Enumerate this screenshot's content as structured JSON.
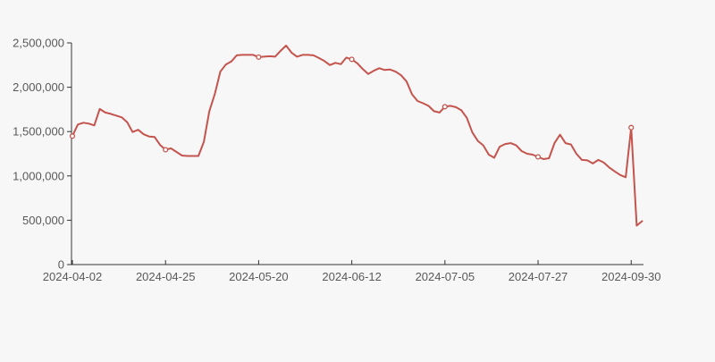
{
  "colors": {
    "background": "#f7f7f7",
    "line": "#c4544d",
    "marker_fill": "#ffffff",
    "axis": "#333333",
    "label": "#595959"
  },
  "chart_data": {
    "type": "line",
    "title": "",
    "xlabel": "",
    "ylabel": "",
    "grid": false,
    "legend": false,
    "x_axis": {
      "kind": "category-trading-days",
      "tick_labels": [
        "2024-04-02",
        "2024-04-25",
        "2024-05-20",
        "2024-06-12",
        "2024-07-05",
        "2024-07-27",
        "2024-09-30"
      ],
      "tick_indices": [
        0,
        17,
        34,
        51,
        68,
        85,
        102
      ],
      "point_count": 105
    },
    "y_axis": {
      "tick_labels": [
        "0",
        "500,000",
        "1,000,000",
        "1,500,000",
        "2,000,000",
        "2,500,000"
      ],
      "tick_values": [
        0,
        500000,
        1000000,
        1500000,
        2000000,
        2500000
      ],
      "range": [
        0,
        2500000
      ]
    },
    "series": [
      {
        "name": "value",
        "color": "#c4544d",
        "marker": "open-circle",
        "marker_indices": [
          0,
          17,
          34,
          51,
          68,
          85,
          102
        ],
        "values": [
          1450000,
          1580000,
          1600000,
          1590000,
          1570000,
          1755000,
          1715000,
          1700000,
          1680000,
          1660000,
          1605000,
          1495000,
          1520000,
          1470000,
          1445000,
          1440000,
          1350000,
          1295000,
          1310000,
          1270000,
          1230000,
          1225000,
          1225000,
          1225000,
          1385000,
          1730000,
          1925000,
          2175000,
          2255000,
          2290000,
          2360000,
          2365000,
          2365000,
          2365000,
          2340000,
          2345000,
          2350000,
          2345000,
          2410000,
          2470000,
          2390000,
          2345000,
          2365000,
          2365000,
          2360000,
          2330000,
          2295000,
          2250000,
          2275000,
          2260000,
          2335000,
          2315000,
          2270000,
          2205000,
          2150000,
          2185000,
          2215000,
          2195000,
          2200000,
          2175000,
          2135000,
          2065000,
          1920000,
          1845000,
          1820000,
          1790000,
          1730000,
          1715000,
          1780000,
          1790000,
          1775000,
          1740000,
          1655000,
          1490000,
          1395000,
          1345000,
          1240000,
          1205000,
          1330000,
          1360000,
          1370000,
          1345000,
          1280000,
          1250000,
          1240000,
          1215000,
          1190000,
          1200000,
          1370000,
          1465000,
          1370000,
          1355000,
          1250000,
          1180000,
          1175000,
          1140000,
          1180000,
          1150000,
          1095000,
          1050000,
          1010000,
          985000,
          1545000,
          440000,
          490000
        ]
      }
    ]
  }
}
